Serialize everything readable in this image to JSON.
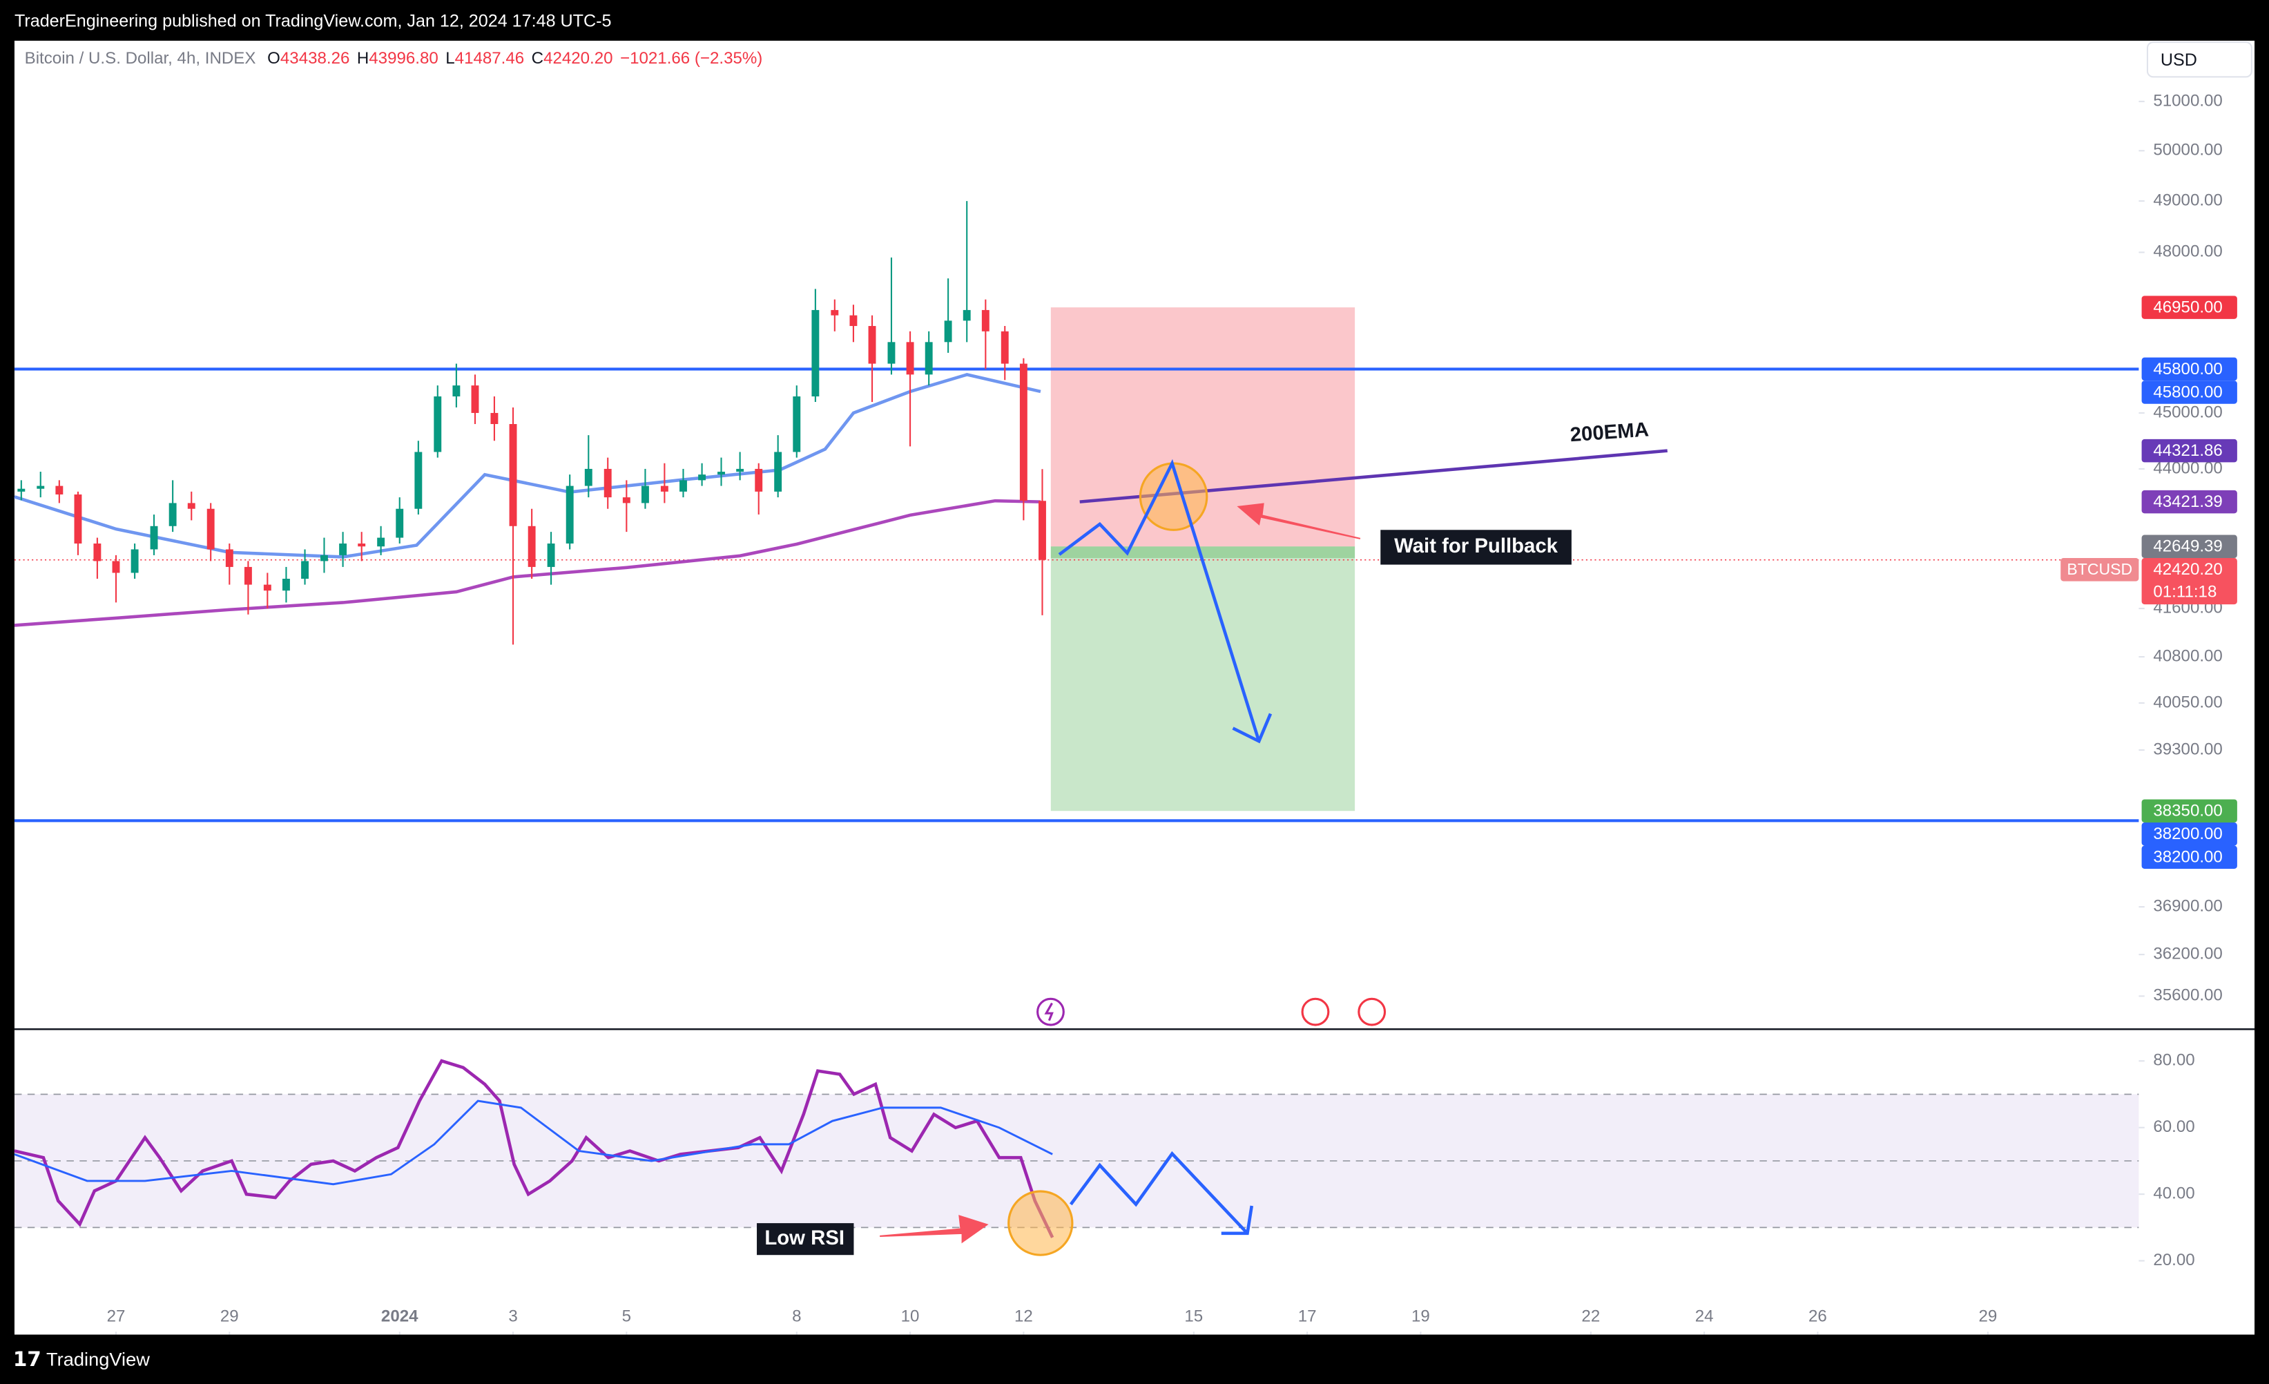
{
  "header": {
    "publisher": "TraderEngineering published on TradingView.com, Jan 12, 2024 17:48 UTC-5",
    "brand": "TradingView",
    "currency": "USD"
  },
  "chart_data": [
    {
      "type": "candlestick",
      "title": "Bitcoin / U.S. Dollar, 4h, INDEX",
      "legend_ohlc": [
        {
          "key": "O",
          "text": "43438.26"
        },
        {
          "key": "H",
          "text": "43996.80"
        },
        {
          "key": "L",
          "text": "41487.46"
        },
        {
          "key": "C",
          "text": "42420.20"
        }
      ],
      "change": "−1021.66 (−2.35%)",
      "symbol": "BTCUSD",
      "countdown": "01:11:18",
      "log_scale": true,
      "up_color": "#089981",
      "down_color": "#f23645",
      "xlim": [
        25.21,
        62.66
      ],
      "ylim": [
        35150,
        52260
      ],
      "yticks": [
        {
          "value": 51000,
          "label": "51000.00"
        },
        {
          "value": 50000,
          "label": "50000.00"
        },
        {
          "value": 49000,
          "label": "49000.00"
        },
        {
          "value": 48000,
          "label": "48000.00"
        },
        {
          "value": 45000,
          "label": "45000.00"
        },
        {
          "value": 44000,
          "label": "44000.00"
        },
        {
          "value": 41600,
          "label": "41600.00"
        },
        {
          "value": 40800,
          "label": "40800.00"
        },
        {
          "value": 40050,
          "label": "40050.00"
        },
        {
          "value": 39300,
          "label": "39300.00"
        },
        {
          "value": 36900,
          "label": "36900.00"
        },
        {
          "value": 36200,
          "label": "36200.00"
        },
        {
          "value": 35600,
          "label": "35600.00"
        }
      ],
      "x": [
        25.33,
        25.67,
        26,
        26.33,
        26.67,
        27,
        27.33,
        27.67,
        28,
        28.33,
        28.67,
        29,
        29.33,
        29.67,
        30,
        30.33,
        30.67,
        31,
        31.33,
        31.67,
        32,
        32.33,
        32.67,
        33,
        33.33,
        33.67,
        34,
        34.33,
        34.67,
        35,
        35.33,
        35.67,
        36,
        36.33,
        36.67,
        37,
        37.33,
        37.67,
        38,
        38.33,
        38.67,
        39,
        39.33,
        39.67,
        40,
        40.33,
        40.67,
        41,
        41.33,
        41.67,
        42,
        42.33,
        42.67,
        43,
        43.33
      ],
      "open": [
        43600,
        43650,
        43700,
        43550,
        42700,
        42400,
        42200,
        42600,
        43000,
        43400,
        43300,
        42600,
        42300,
        42000,
        41900,
        42100,
        42400,
        42500,
        42700,
        42650,
        42800,
        43300,
        44300,
        45300,
        45500,
        45000,
        44800,
        43000,
        42300,
        42700,
        43700,
        44000,
        43500,
        43400,
        43700,
        43600,
        43800,
        43900,
        43950,
        44000,
        43600,
        44300,
        45300,
        46900,
        46800,
        46600,
        45900,
        46300,
        45700,
        46300,
        46700,
        46900,
        46500,
        45900,
        43438.26
      ],
      "high": [
        43800,
        43950,
        43800,
        43600,
        42800,
        42500,
        42700,
        43200,
        43800,
        43600,
        43400,
        42700,
        42400,
        42200,
        42300,
        42600,
        42800,
        42900,
        42900,
        43000,
        43500,
        44500,
        45500,
        45900,
        45700,
        45300,
        45100,
        43300,
        42900,
        43900,
        44600,
        44200,
        43800,
        44000,
        44100,
        44000,
        44100,
        44200,
        44300,
        44100,
        44600,
        45500,
        47300,
        47100,
        47000,
        46800,
        47900,
        46500,
        46500,
        47500,
        49000,
        47100,
        46600,
        46000,
        43996.8
      ],
      "low": [
        43450,
        43500,
        43400,
        42500,
        42100,
        41700,
        42100,
        42500,
        42900,
        43100,
        42400,
        42000,
        41500,
        41600,
        41700,
        42000,
        42200,
        42300,
        42400,
        42500,
        42700,
        43200,
        44200,
        45100,
        44800,
        44500,
        41000,
        42100,
        42000,
        42600,
        43500,
        43300,
        42900,
        43300,
        43400,
        43500,
        43700,
        43700,
        43800,
        43200,
        43500,
        44200,
        45200,
        46500,
        46300,
        45200,
        45700,
        44400,
        45500,
        46100,
        46300,
        45800,
        45600,
        43100,
        41487.46
      ],
      "close": [
        43650,
        43700,
        43550,
        42700,
        42400,
        42200,
        42600,
        43000,
        43400,
        43300,
        42600,
        42300,
        42000,
        41900,
        42100,
        42400,
        42500,
        42700,
        42650,
        42800,
        43300,
        44300,
        45300,
        45500,
        45000,
        44800,
        43000,
        42300,
        42700,
        43700,
        44000,
        43500,
        43400,
        43700,
        43600,
        43800,
        43900,
        43950,
        44000,
        43600,
        44300,
        45300,
        46900,
        46800,
        46600,
        45900,
        46300,
        45700,
        46300,
        46700,
        46900,
        46500,
        45900,
        43440,
        42420.2
      ],
      "lines": [
        {
          "color": "#6f96f0",
          "x": [
            25.21,
            27,
            29,
            31,
            32.3,
            33.5,
            35,
            37,
            38.7,
            39.5,
            40,
            41,
            42,
            43.3
          ],
          "values": [
            43510,
            42950,
            42550,
            42470,
            42670,
            43900,
            43590,
            43810,
            43980,
            44350,
            45000,
            45390,
            45700,
            45390
          ]
        },
        {
          "color": "#ab47bc",
          "x": [
            25.21,
            27,
            29,
            31,
            33,
            34,
            36,
            38,
            39,
            40,
            41,
            42.5,
            43.3
          ],
          "values": [
            41320,
            41440,
            41580,
            41700,
            41880,
            42130,
            42290,
            42490,
            42690,
            42940,
            43190,
            43440,
            43421.39
          ]
        }
      ],
      "hlines": [
        {
          "value": 45800,
          "color": "#2962ff"
        },
        {
          "value": 38200,
          "color": "#2962ff"
        }
      ],
      "last_price": 42420.2,
      "position": {
        "x": [
          43.48,
          48.84
        ],
        "stop": 46950,
        "entry": 42649.39,
        "target": 38350
      },
      "trendline": {
        "label": "200EMA",
        "color": "#5e35b1",
        "x": [
          43.99,
          54.35
        ],
        "values": [
          43421.39,
          44321.86
        ]
      },
      "annotation": "Wait for Pullback",
      "price_labels": [
        {
          "value": 46950,
          "label": "46950.00",
          "color": "#f23645"
        },
        {
          "value": 45800,
          "label": "45800.00",
          "color": "#2962ff"
        },
        {
          "value": 45800,
          "label": "45800.00",
          "color": "#2962ff"
        },
        {
          "value": 44321.86,
          "label": "44321.86",
          "color": "#673ab7"
        },
        {
          "value": 43421.39,
          "label": "43421.39",
          "color": "#7e3fb8"
        },
        {
          "value": 42649.39,
          "label": "42649.39",
          "color": "#787b86"
        },
        {
          "value": 42420.2,
          "label": "42420.20",
          "color": "#f7525f"
        },
        {
          "value": 38350,
          "label": "38350.00",
          "color": "#4caf50"
        },
        {
          "value": 38200,
          "label": "38200.00",
          "color": "#2962ff"
        },
        {
          "value": 38200,
          "label": "38200.00",
          "color": "#2962ff"
        }
      ]
    },
    {
      "type": "line",
      "xlim": [
        25.21,
        62.66
      ],
      "ylim": [
        -1.3,
        89.1
      ],
      "yticks": [
        {
          "value": 80,
          "label": "80.00"
        },
        {
          "value": 60,
          "label": "60.00"
        },
        {
          "value": 40,
          "label": "40.00"
        },
        {
          "value": 20,
          "label": "20.00"
        }
      ],
      "bands": [
        70,
        50,
        30
      ],
      "xticks": [
        27,
        29,
        {
          "value": 32,
          "label": "2024"
        },
        {
          "value": 34,
          "label": "3"
        },
        {
          "value": 36,
          "label": "5"
        },
        {
          "value": 39,
          "label": "8"
        },
        {
          "value": 41,
          "label": "10"
        },
        {
          "value": 43,
          "label": "12"
        },
        {
          "value": 46,
          "label": "15"
        },
        {
          "value": 48,
          "label": "17"
        },
        {
          "value": 50,
          "label": "19"
        },
        {
          "value": 53,
          "label": "22"
        },
        {
          "value": 55,
          "label": "24"
        },
        {
          "value": 57,
          "label": "26"
        },
        {
          "value": 60,
          "label": "29"
        }
      ],
      "series": [
        {
          "color": "#9c27b0",
          "x": [
            25.21,
            25.72,
            25.98,
            26.36,
            26.62,
            27,
            27.51,
            27.77,
            28.15,
            28.53,
            29.04,
            29.3,
            29.81,
            30.06,
            30.44,
            30.83,
            31.21,
            31.59,
            31.97,
            32.35,
            32.74,
            33.12,
            33.5,
            33.76,
            34.02,
            34.27,
            34.65,
            35.04,
            35.29,
            35.68,
            36.06,
            36.57,
            36.95,
            37.46,
            37.97,
            38.35,
            38.73,
            39.12,
            39.37,
            39.76,
            40.01,
            40.39,
            40.65,
            41.03,
            41.42,
            41.8,
            42.18,
            42.57,
            42.95,
            43.2,
            43.51
          ],
          "values": [
            53,
            51,
            38,
            31,
            41,
            44,
            57,
            51,
            41,
            47,
            50,
            40,
            39,
            44,
            49,
            50,
            47,
            51,
            54,
            68,
            80,
            78,
            73,
            68,
            49,
            40,
            44,
            50,
            57,
            51,
            53,
            50,
            52,
            53,
            54,
            57,
            47,
            64,
            77,
            76,
            70,
            73,
            57,
            53,
            64,
            60,
            62,
            51,
            51,
            38,
            27
          ]
        },
        {
          "color": "#2962ff",
          "x": [
            25.21,
            26.49,
            27.51,
            29.04,
            30.83,
            31.85,
            32.61,
            33.38,
            34.14,
            35.16,
            36.44,
            38.22,
            38.86,
            39.63,
            40.52,
            41.54,
            42.57,
            43.51
          ],
          "values": [
            52,
            44,
            44,
            47,
            43,
            46,
            55,
            68,
            66,
            53,
            50,
            55,
            55,
            62,
            66,
            66,
            60,
            52
          ]
        }
      ],
      "annotation": "Low RSI"
    }
  ]
}
